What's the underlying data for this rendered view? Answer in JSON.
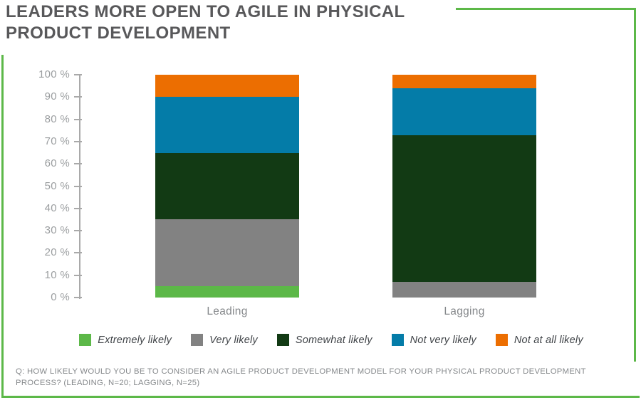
{
  "title": {
    "line1": "LEADERS MORE OPEN TO AGILE IN PHYSICAL",
    "line2": "PRODUCT DEVELOPMENT"
  },
  "footnote": {
    "line1": "Q: HOW LIKELY WOULD YOU BE TO CONSIDER AN AGILE PRODUCT DEVELOPMENT MODEL FOR YOUR PHYSICAL PRODUCT DEVELOPMENT",
    "line2": "PROCESS? (LEADING, N=20; LAGGING, N=25)"
  },
  "colors": {
    "frame_green": "#5cb848",
    "title_gray": "#58585a",
    "axis_gray": "#a9a9a9",
    "tick_label_gray": "#9b9ea0",
    "category_label_gray": "#85888b",
    "legend_text": "#3f4347",
    "footnote_gray": "#85888b"
  },
  "chart_data": {
    "type": "bar",
    "stacked": true,
    "title": "LEADERS MORE OPEN TO AGILE IN PHYSICAL PRODUCT DEVELOPMENT",
    "categories": [
      "Leading",
      "Lagging"
    ],
    "series": [
      {
        "name": "Extremely likely",
        "color": "#5cb848",
        "values": [
          5,
          0
        ]
      },
      {
        "name": "Very likely",
        "color": "#828282",
        "values": [
          30,
          7
        ]
      },
      {
        "name": "Somewhat likely",
        "color": "#123a14",
        "values": [
          30,
          66
        ]
      },
      {
        "name": "Not very likely",
        "color": "#047ca8",
        "values": [
          25,
          21
        ]
      },
      {
        "name": "Not at all likely",
        "color": "#ec6e01",
        "values": [
          10,
          6
        ]
      }
    ],
    "xlabel": "",
    "ylabel": "",
    "ylim": [
      0,
      100
    ],
    "y_unit": "%",
    "y_tick_labels": [
      "100 %",
      "90 %",
      "80 %",
      "70 %",
      "60 %",
      "50 %",
      "40 %",
      "30 %",
      "20 %",
      "10 %",
      "0 %"
    ],
    "gridlines": false,
    "legend_position": "bottom"
  }
}
